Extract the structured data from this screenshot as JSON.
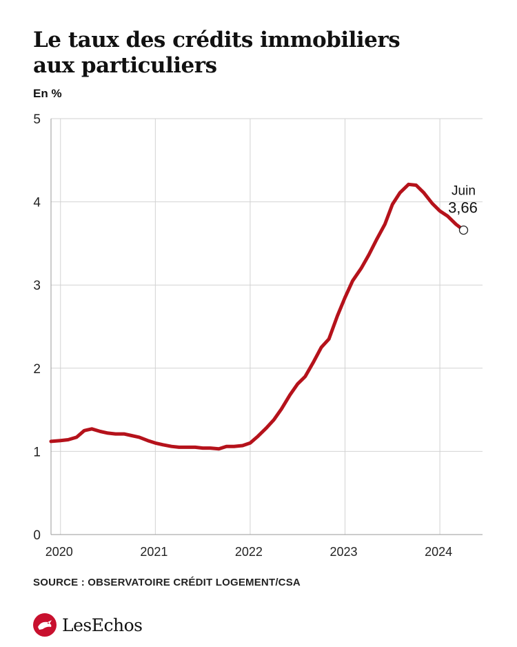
{
  "header": {
    "title_line1": "Le taux des crédits immobiliers",
    "title_line2": "aux particuliers",
    "unit": "En %"
  },
  "footer": {
    "source": "SOURCE : OBSERVATOIRE CRÉDIT LOGEMENT/CSA",
    "brand": "LesEchos"
  },
  "chart_data": {
    "type": "line",
    "title": "Le taux des crédits immobiliers aux particuliers",
    "ylabel": "En %",
    "xlabel": "",
    "ylim": [
      0,
      5
    ],
    "xlim": [
      2019.9,
      2024.45
    ],
    "yticks": [
      "0",
      "1",
      "2",
      "3",
      "4",
      "5"
    ],
    "xticks": [
      {
        "label": "2020",
        "value": 2020.0
      },
      {
        "label": "2021",
        "value": 2021.0
      },
      {
        "label": "2022",
        "value": 2022.0
      },
      {
        "label": "2023",
        "value": 2023.0
      },
      {
        "label": "2024",
        "value": 2024.0
      }
    ],
    "grid": true,
    "line_color": "#b5121b",
    "series": [
      {
        "values": [
          [
            2019.9,
            1.12
          ],
          [
            2020.0,
            1.13
          ],
          [
            2020.08,
            1.14
          ],
          [
            2020.17,
            1.17
          ],
          [
            2020.25,
            1.25
          ],
          [
            2020.33,
            1.27
          ],
          [
            2020.42,
            1.24
          ],
          [
            2020.5,
            1.22
          ],
          [
            2020.58,
            1.21
          ],
          [
            2020.67,
            1.21
          ],
          [
            2020.75,
            1.19
          ],
          [
            2020.83,
            1.17
          ],
          [
            2020.92,
            1.13
          ],
          [
            2021.0,
            1.1
          ],
          [
            2021.08,
            1.08
          ],
          [
            2021.17,
            1.06
          ],
          [
            2021.25,
            1.05
          ],
          [
            2021.33,
            1.05
          ],
          [
            2021.42,
            1.05
          ],
          [
            2021.5,
            1.04
          ],
          [
            2021.58,
            1.04
          ],
          [
            2021.67,
            1.03
          ],
          [
            2021.75,
            1.06
          ],
          [
            2021.83,
            1.06
          ],
          [
            2021.92,
            1.07
          ],
          [
            2022.0,
            1.1
          ],
          [
            2022.08,
            1.18
          ],
          [
            2022.17,
            1.28
          ],
          [
            2022.25,
            1.38
          ],
          [
            2022.33,
            1.51
          ],
          [
            2022.42,
            1.68
          ],
          [
            2022.5,
            1.81
          ],
          [
            2022.58,
            1.9
          ],
          [
            2022.67,
            2.08
          ],
          [
            2022.75,
            2.25
          ],
          [
            2022.83,
            2.35
          ],
          [
            2022.92,
            2.63
          ],
          [
            2023.0,
            2.85
          ],
          [
            2023.08,
            3.05
          ],
          [
            2023.17,
            3.2
          ],
          [
            2023.25,
            3.36
          ],
          [
            2023.33,
            3.54
          ],
          [
            2023.42,
            3.73
          ],
          [
            2023.5,
            3.97
          ],
          [
            2023.58,
            4.11
          ],
          [
            2023.67,
            4.21
          ],
          [
            2023.75,
            4.2
          ],
          [
            2023.83,
            4.11
          ],
          [
            2023.92,
            3.98
          ],
          [
            2024.0,
            3.89
          ],
          [
            2024.08,
            3.83
          ],
          [
            2024.17,
            3.73
          ],
          [
            2024.25,
            3.66
          ]
        ]
      }
    ],
    "annotation": {
      "label": "Juin",
      "value": "3,66",
      "x": 2024.25,
      "y": 3.66
    }
  }
}
